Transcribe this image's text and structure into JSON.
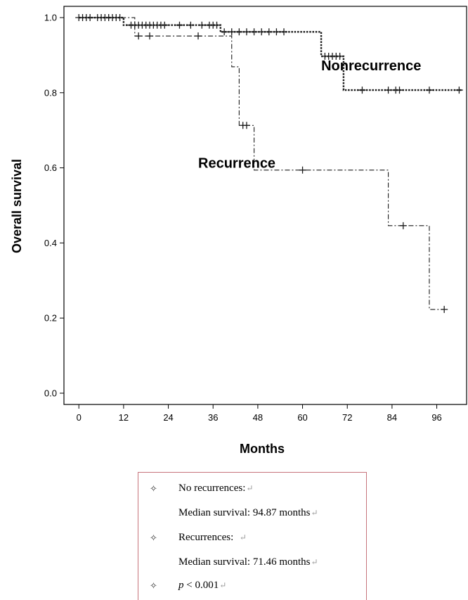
{
  "chart_data": {
    "type": "line",
    "step": true,
    "xlabel": "Months",
    "ylabel": "Overall survival",
    "xlim": [
      -4,
      104
    ],
    "ylim": [
      -0.03,
      1.03
    ],
    "xticks": [
      0,
      12,
      24,
      36,
      48,
      60,
      72,
      84,
      96
    ],
    "yticks": [
      0.0,
      0.2,
      0.4,
      0.6,
      0.8,
      1.0
    ],
    "ytick_labels": [
      "0.0",
      "0.2",
      "0.4",
      "0.6",
      "0.8",
      "1.0"
    ],
    "grid": false,
    "series": [
      {
        "name": "Nonrecurrence",
        "line_style": "dotted",
        "label_at": [
          65,
          0.86
        ],
        "steps": [
          [
            0,
            1.0
          ],
          [
            12,
            0.98
          ],
          [
            38,
            0.962
          ],
          [
            65,
            0.897
          ],
          [
            71,
            0.807
          ],
          [
            103,
            0.807
          ]
        ],
        "censored": [
          [
            1,
            1.0
          ],
          [
            2,
            1.0
          ],
          [
            3,
            1.0
          ],
          [
            5,
            1.0
          ],
          [
            6,
            1.0
          ],
          [
            7,
            1.0
          ],
          [
            8,
            1.0
          ],
          [
            9,
            1.0
          ],
          [
            10,
            1.0
          ],
          [
            11,
            1.0
          ],
          [
            14,
            0.98
          ],
          [
            15,
            0.98
          ],
          [
            16,
            0.98
          ],
          [
            17,
            0.98
          ],
          [
            18,
            0.98
          ],
          [
            19,
            0.98
          ],
          [
            20,
            0.98
          ],
          [
            21,
            0.98
          ],
          [
            22,
            0.98
          ],
          [
            23,
            0.98
          ],
          [
            27,
            0.98
          ],
          [
            30,
            0.98
          ],
          [
            33,
            0.98
          ],
          [
            35,
            0.98
          ],
          [
            36,
            0.98
          ],
          [
            37,
            0.98
          ],
          [
            39,
            0.962
          ],
          [
            41,
            0.962
          ],
          [
            43,
            0.962
          ],
          [
            45,
            0.962
          ],
          [
            47,
            0.962
          ],
          [
            49,
            0.962
          ],
          [
            51,
            0.962
          ],
          [
            53,
            0.962
          ],
          [
            55,
            0.962
          ],
          [
            66,
            0.897
          ],
          [
            67,
            0.897
          ],
          [
            68,
            0.897
          ],
          [
            69,
            0.897
          ],
          [
            70,
            0.897
          ],
          [
            76,
            0.807
          ],
          [
            83,
            0.807
          ],
          [
            85,
            0.807
          ],
          [
            86,
            0.807
          ],
          [
            94,
            0.807
          ],
          [
            102,
            0.807
          ]
        ]
      },
      {
        "name": "Recurrence",
        "line_style": "dash-dot",
        "label_at": [
          32,
          0.6
        ],
        "steps": [
          [
            0,
            1.0
          ],
          [
            15,
            0.951
          ],
          [
            41,
            0.869
          ],
          [
            43,
            0.713
          ],
          [
            47,
            0.594
          ],
          [
            83,
            0.446
          ],
          [
            94,
            0.223
          ],
          [
            98,
            0.223
          ]
        ],
        "censored": [
          [
            0,
            1.0
          ],
          [
            16,
            0.951
          ],
          [
            19,
            0.951
          ],
          [
            32,
            0.951
          ],
          [
            44,
            0.713
          ],
          [
            45,
            0.713
          ],
          [
            60,
            0.594
          ],
          [
            87,
            0.446
          ],
          [
            98,
            0.223
          ]
        ]
      }
    ]
  },
  "legend": {
    "bullet_icon": "✧",
    "return_icon": "↵",
    "no_recurrences_label": "No recurrences:",
    "no_recurrences_median": "Median survival: 94.87 months",
    "recurrences_label": "Recurrences:",
    "recurrences_median": "Median survival: 71.46 months",
    "p_symbol": "p",
    "p_value_text": " < 0.001"
  }
}
